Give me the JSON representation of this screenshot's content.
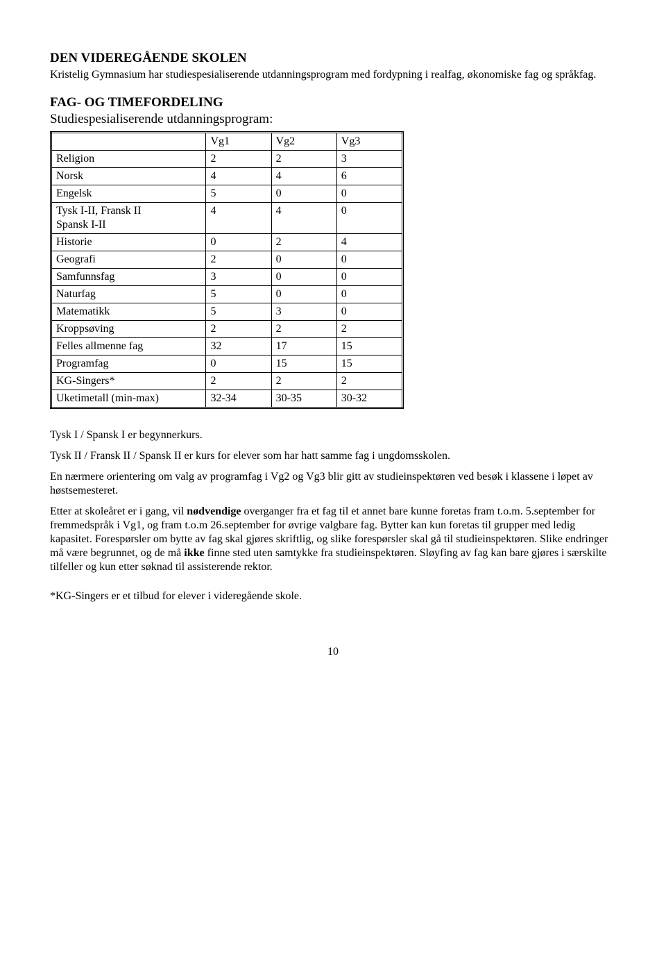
{
  "heading": "DEN VIDEREGÅENDE SKOLEN",
  "intro": "Kristelig Gymnasium har studiespesialiserende utdanningsprogram med fordypning i realfag, økonomiske fag og språkfag.",
  "section_title": "FAG- OG TIMEFORDELING",
  "section_sub": "Studiespesialiserende utdanningsprogram:",
  "table": {
    "columns": [
      "",
      "Vg1",
      "Vg2",
      "Vg3"
    ],
    "column_widths": [
      "230px",
      "90px",
      "90px",
      "90px"
    ],
    "rows": [
      [
        "Religion",
        "2",
        "2",
        "3"
      ],
      [
        "Norsk",
        "4",
        "4",
        "6"
      ],
      [
        "Engelsk",
        "5",
        "0",
        "0"
      ],
      [
        "Tysk I-II, Fransk II\nSpansk I-II",
        "4",
        "4",
        "0"
      ],
      [
        "Historie",
        "0",
        "2",
        "4"
      ],
      [
        "Geografi",
        "2",
        "0",
        "0"
      ],
      [
        "Samfunnsfag",
        "3",
        "0",
        "0"
      ],
      [
        "Naturfag",
        "5",
        "0",
        "0"
      ],
      [
        "Matematikk",
        "5",
        "3",
        "0"
      ],
      [
        "Kroppsøving",
        "2",
        "2",
        "2"
      ],
      [
        "Felles allmenne fag",
        "32",
        "17",
        "15"
      ],
      [
        "Programfag",
        "0",
        "15",
        "15"
      ],
      [
        "KG-Singers*",
        "2",
        "2",
        "2"
      ],
      [
        "Uketimetall (min-max)",
        "32-34",
        "30-35",
        "30-32"
      ]
    ],
    "border_color": "#000000",
    "background": "#ffffff",
    "font_size_pt": 12
  },
  "para1": "Tysk I /  Spansk I er begynnerkurs.",
  "para2": "Tysk II / Fransk II / Spansk II er kurs for elever som har hatt samme fag i ungdomsskolen.",
  "para3": "En nærmere orientering om valg av programfag i Vg2 og Vg3 blir gitt av studieinspektøren ved besøk i klassene i løpet av høstsemesteret.",
  "para4_pre": "Etter at skoleåret er i gang, vil ",
  "para4_bold1": "nødvendige",
  "para4_mid": " overganger fra et fag til et annet bare kunne foretas fram t.o.m. 5.september for fremmedspråk i Vg1, og fram t.o.m 26.september for øvrige valgbare fag. Bytter kan kun foretas til grupper med ledig kapasitet. Forespørsler om bytte av fag skal gjøres skriftlig, og slike forespørsler skal gå til studieinspektøren. Slike endringer må være begrunnet, og de må ",
  "para4_bold2": "ikke",
  "para4_post": " finne sted uten samtykke fra studieinspektøren. Sløyfing av fag kan bare gjøres i særskilte tilfeller og kun etter søknad til assisterende rektor.",
  "para5": "*KG-Singers er et tilbud for elever i videregående skole.",
  "page_number": "10"
}
